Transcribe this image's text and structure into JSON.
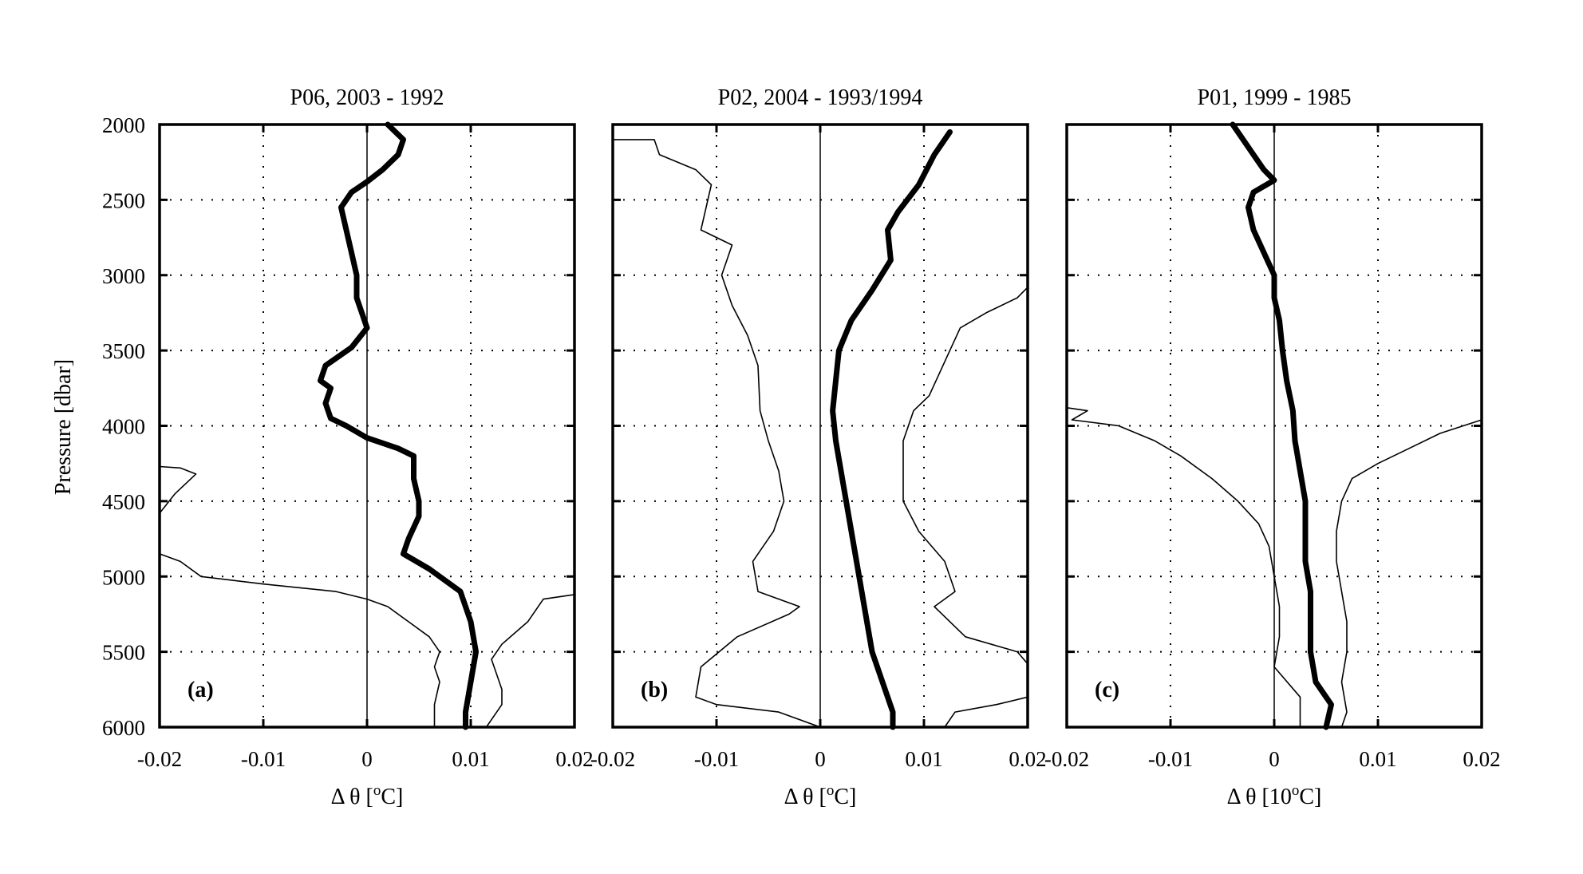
{
  "chart_data": {
    "type": "line",
    "ylabel": "Pressure [dbar]",
    "ylim": [
      2000,
      6000
    ],
    "y_ticks": [
      "2000",
      "2500",
      "3000",
      "3500",
      "4000",
      "4500",
      "5000",
      "5500",
      "6000"
    ],
    "y_reversed": true,
    "grid": "dotted",
    "panels": [
      {
        "title": "P06, 2003 - 1992",
        "tag": "(a)",
        "xlabel": "Δ θ [°C]",
        "xlabel_text": "Δ θ [",
        "xlabel_unit_prefix": "",
        "xlabel_sup": "o",
        "xlabel_suffix": "C]",
        "xlim": [
          -0.02,
          0.02
        ],
        "x_ticks": [
          "-0.02",
          "-0.01",
          "0",
          "0.01",
          "0.02"
        ],
        "series": [
          {
            "style": "mean",
            "points": [
              [
                0.002,
                2000
              ],
              [
                0.0035,
                2100
              ],
              [
                0.003,
                2200
              ],
              [
                0.0015,
                2300
              ],
              [
                0,
                2380
              ],
              [
                -0.0015,
                2450
              ],
              [
                -0.0025,
                2550
              ],
              [
                -0.002,
                2700
              ],
              [
                -0.0015,
                2850
              ],
              [
                -0.001,
                3000
              ],
              [
                -0.001,
                3150
              ],
              [
                0,
                3350
              ],
              [
                -0.0015,
                3480
              ],
              [
                -0.004,
                3600
              ],
              [
                -0.0045,
                3700
              ],
              [
                -0.0035,
                3750
              ],
              [
                -0.004,
                3850
              ],
              [
                -0.0035,
                3950
              ],
              [
                -0.002,
                4000
              ],
              [
                0,
                4080
              ],
              [
                0.003,
                4150
              ],
              [
                0.0045,
                4200
              ],
              [
                0.0045,
                4350
              ],
              [
                0.005,
                4500
              ],
              [
                0.005,
                4600
              ],
              [
                0.004,
                4750
              ],
              [
                0.0035,
                4850
              ],
              [
                0.006,
                4950
              ],
              [
                0.009,
                5100
              ],
              [
                0.0095,
                5200
              ],
              [
                0.01,
                5300
              ],
              [
                0.0105,
                5500
              ],
              [
                0.01,
                5700
              ],
              [
                0.0095,
                5900
              ],
              [
                0.0095,
                6000
              ]
            ]
          },
          {
            "style": "bound",
            "points": [
              [
                -0.02,
                4270
              ],
              [
                -0.018,
                4280
              ],
              [
                -0.0165,
                4320
              ],
              [
                -0.0185,
                4450
              ],
              [
                -0.02,
                4580
              ]
            ]
          },
          {
            "style": "bound",
            "points": [
              [
                -0.02,
                4850
              ],
              [
                -0.018,
                4900
              ],
              [
                -0.016,
                5000
              ],
              [
                -0.01,
                5050
              ],
              [
                -0.003,
                5100
              ],
              [
                0,
                5150
              ],
              [
                0.002,
                5200
              ],
              [
                0.004,
                5300
              ],
              [
                0.006,
                5400
              ],
              [
                0.007,
                5500
              ],
              [
                0.0065,
                5600
              ],
              [
                0.007,
                5700
              ],
              [
                0.0065,
                5850
              ],
              [
                0.0065,
                6000
              ]
            ]
          },
          {
            "style": "bound",
            "points": [
              [
                0.02,
                5120
              ],
              [
                0.017,
                5150
              ],
              [
                0.0155,
                5300
              ],
              [
                0.013,
                5450
              ],
              [
                0.012,
                5550
              ],
              [
                0.0125,
                5650
              ],
              [
                0.013,
                5750
              ],
              [
                0.013,
                5850
              ],
              [
                0.012,
                5950
              ],
              [
                0.0115,
                6000
              ]
            ]
          }
        ]
      },
      {
        "title": "P02, 2004 - 1993/1994",
        "tag": "(b)",
        "xlabel": "Δ θ [°C]",
        "xlabel_text": "Δ θ [",
        "xlabel_unit_prefix": "",
        "xlabel_sup": "o",
        "xlabel_suffix": "C]",
        "xlim": [
          -0.02,
          0.02
        ],
        "x_ticks": [
          "-0.02",
          "-0.01",
          "0",
          "0.01",
          "0.02"
        ],
        "series": [
          {
            "style": "mean",
            "points": [
              [
                0.0125,
                2050
              ],
              [
                0.011,
                2200
              ],
              [
                0.0095,
                2400
              ],
              [
                0.0075,
                2580
              ],
              [
                0.0065,
                2700
              ],
              [
                0.0068,
                2900
              ],
              [
                0.005,
                3100
              ],
              [
                0.003,
                3300
              ],
              [
                0.0018,
                3500
              ],
              [
                0.0015,
                3700
              ],
              [
                0.0012,
                3900
              ],
              [
                0.0015,
                4100
              ],
              [
                0.002,
                4300
              ],
              [
                0.0025,
                4500
              ],
              [
                0.003,
                4700
              ],
              [
                0.0035,
                4900
              ],
              [
                0.004,
                5100
              ],
              [
                0.0045,
                5300
              ],
              [
                0.005,
                5500
              ],
              [
                0.006,
                5700
              ],
              [
                0.007,
                5900
              ],
              [
                0.007,
                6000
              ]
            ]
          },
          {
            "style": "bound",
            "points": [
              [
                -0.02,
                2100
              ],
              [
                -0.016,
                2100
              ],
              [
                -0.0155,
                2200
              ],
              [
                -0.012,
                2300
              ],
              [
                -0.0105,
                2400
              ],
              [
                -0.011,
                2550
              ],
              [
                -0.0115,
                2700
              ],
              [
                -0.0085,
                2800
              ],
              [
                -0.0095,
                3000
              ],
              [
                -0.0085,
                3200
              ],
              [
                -0.007,
                3400
              ],
              [
                -0.006,
                3600
              ],
              [
                -0.0058,
                3900
              ],
              [
                -0.005,
                4100
              ],
              [
                -0.004,
                4300
              ],
              [
                -0.0035,
                4500
              ],
              [
                -0.0045,
                4700
              ],
              [
                -0.0065,
                4900
              ],
              [
                -0.006,
                5100
              ],
              [
                -0.002,
                5200
              ],
              [
                -0.003,
                5250
              ],
              [
                -0.008,
                5400
              ],
              [
                -0.0115,
                5600
              ],
              [
                -0.012,
                5800
              ],
              [
                -0.01,
                5850
              ],
              [
                -0.004,
                5900
              ],
              [
                0,
                6000
              ]
            ]
          },
          {
            "style": "bound",
            "points": [
              [
                0.02,
                3080
              ],
              [
                0.019,
                3150
              ],
              [
                0.016,
                3250
              ],
              [
                0.0135,
                3350
              ],
              [
                0.0125,
                3500
              ],
              [
                0.0115,
                3650
              ],
              [
                0.0105,
                3800
              ],
              [
                0.009,
                3900
              ],
              [
                0.008,
                4100
              ],
              [
                0.008,
                4300
              ],
              [
                0.008,
                4500
              ],
              [
                0.0095,
                4700
              ],
              [
                0.012,
                4900
              ],
              [
                0.013,
                5100
              ],
              [
                0.011,
                5200
              ],
              [
                0.014,
                5400
              ],
              [
                0.019,
                5500
              ],
              [
                0.02,
                5580
              ]
            ]
          },
          {
            "style": "bound",
            "points": [
              [
                0.02,
                5800
              ],
              [
                0.017,
                5850
              ],
              [
                0.013,
                5900
              ],
              [
                0.012,
                6000
              ]
            ]
          }
        ]
      },
      {
        "title": "P01, 1999 - 1985",
        "tag": "(c)",
        "xlabel": "Δ θ [10°C]",
        "xlabel_text": "Δ θ [",
        "xlabel_unit_prefix": "10",
        "xlabel_sup": "o",
        "xlabel_suffix": "C]",
        "xlim": [
          -0.02,
          0.02
        ],
        "x_ticks": [
          "-0.02",
          "-0.01",
          "0",
          "0.01",
          "0.02"
        ],
        "series": [
          {
            "style": "mean",
            "points": [
              [
                -0.004,
                2000
              ],
              [
                -0.003,
                2100
              ],
              [
                -0.002,
                2200
              ],
              [
                -0.001,
                2300
              ],
              [
                0,
                2370
              ],
              [
                -0.002,
                2450
              ],
              [
                -0.0025,
                2550
              ],
              [
                -0.002,
                2700
              ],
              [
                -0.001,
                2850
              ],
              [
                0,
                3000
              ],
              [
                0,
                3150
              ],
              [
                0.0005,
                3300
              ],
              [
                0.0008,
                3500
              ],
              [
                0.0012,
                3700
              ],
              [
                0.0018,
                3900
              ],
              [
                0.002,
                4100
              ],
              [
                0.0025,
                4300
              ],
              [
                0.003,
                4500
              ],
              [
                0.003,
                4700
              ],
              [
                0.003,
                4900
              ],
              [
                0.0035,
                5100
              ],
              [
                0.0035,
                5300
              ],
              [
                0.0035,
                5500
              ],
              [
                0.004,
                5700
              ],
              [
                0.0055,
                5850
              ],
              [
                0.005,
                6000
              ]
            ]
          },
          {
            "style": "bound",
            "points": [
              [
                -0.02,
                3880
              ],
              [
                -0.018,
                3900
              ],
              [
                -0.0195,
                3960
              ],
              [
                -0.015,
                4000
              ],
              [
                -0.0115,
                4100
              ],
              [
                -0.009,
                4200
              ],
              [
                -0.006,
                4350
              ],
              [
                -0.0035,
                4500
              ],
              [
                -0.0015,
                4650
              ],
              [
                -0.0005,
                4800
              ],
              [
                0,
                5000
              ],
              [
                0.0005,
                5200
              ],
              [
                0.0005,
                5400
              ],
              [
                0,
                5600
              ],
              [
                0.0025,
                5800
              ],
              [
                0.0025,
                6000
              ]
            ]
          },
          {
            "style": "bound",
            "points": [
              [
                0.02,
                3960
              ],
              [
                0.016,
                4050
              ],
              [
                0.013,
                4150
              ],
              [
                0.01,
                4250
              ],
              [
                0.0075,
                4350
              ],
              [
                0.0065,
                4500
              ],
              [
                0.006,
                4700
              ],
              [
                0.006,
                4900
              ],
              [
                0.0065,
                5100
              ],
              [
                0.007,
                5300
              ],
              [
                0.007,
                5500
              ],
              [
                0.0065,
                5700
              ],
              [
                0.007,
                5900
              ],
              [
                0.0065,
                6000
              ]
            ]
          }
        ]
      }
    ]
  }
}
